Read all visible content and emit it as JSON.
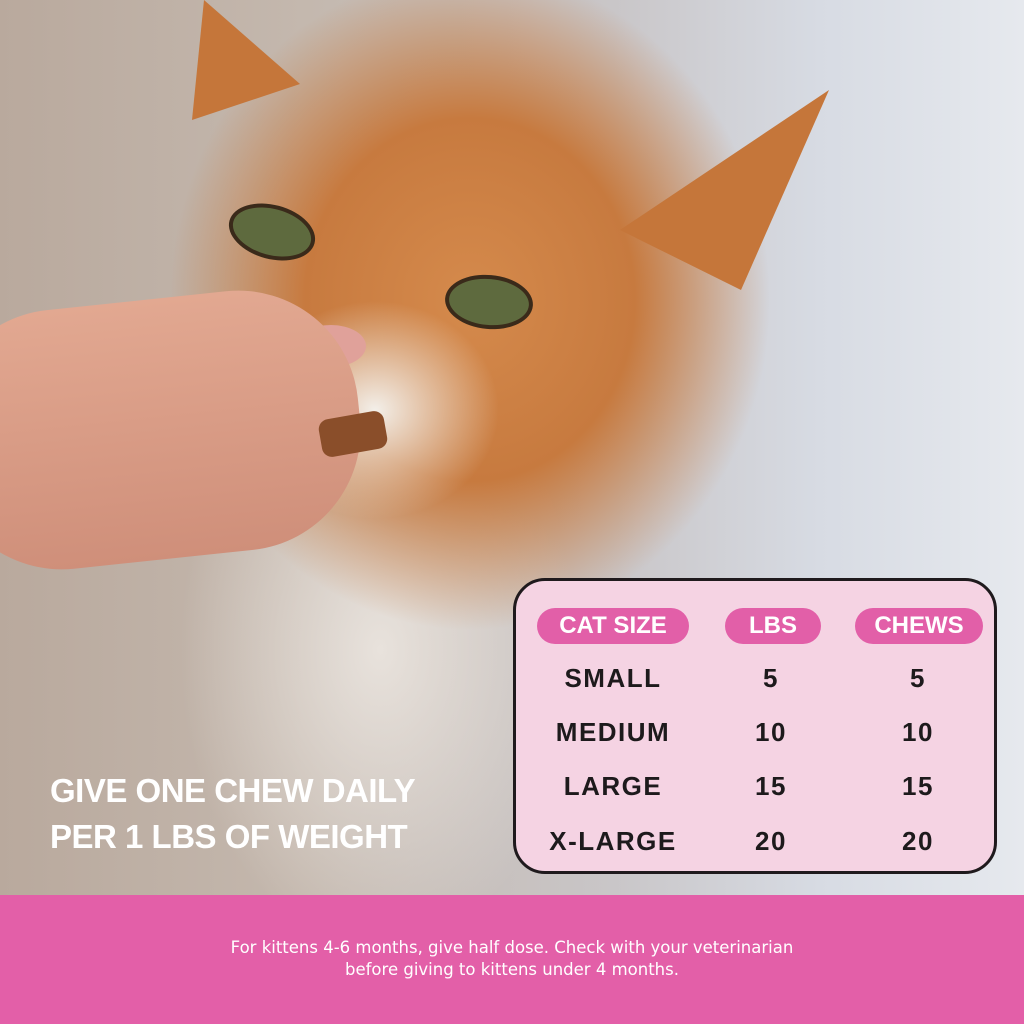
{
  "headline": {
    "line1": "GIVE ONE CHEW DAILY",
    "line2": "PER 1 LBS OF WEIGHT"
  },
  "dosage_table": {
    "headers": [
      "CAT SIZE",
      "LBS",
      "CHEWS"
    ],
    "rows": [
      [
        "SMALL",
        "5",
        "5"
      ],
      [
        "MEDIUM",
        "10",
        "10"
      ],
      [
        "LARGE",
        "15",
        "15"
      ],
      [
        "X-LARGE",
        "20",
        "20"
      ]
    ]
  },
  "footer": {
    "line1": "For kittens 4-6 months, give half dose. Check with your veterinarian",
    "line2": "before giving to kittens under 4 months."
  },
  "colors": {
    "accent_pink": "#e35fa8",
    "table_bg": "#f5d3e3",
    "text_dark": "#1d1a1c"
  }
}
